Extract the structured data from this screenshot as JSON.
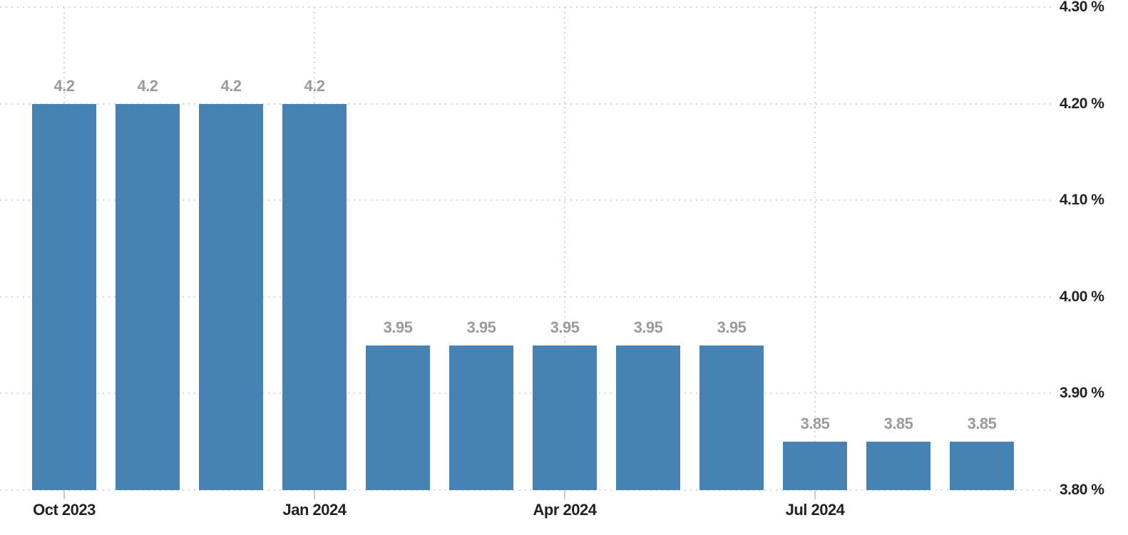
{
  "chart": {
    "bar_color": "#4682b4",
    "grid_color": "#d4d4d4",
    "value_label_color": "#9b9b9b",
    "axis_label_color": "#222222",
    "background_color": "#ffffff"
  },
  "chart_data": {
    "type": "bar",
    "values": [
      4.2,
      4.2,
      4.2,
      4.2,
      3.95,
      3.95,
      3.95,
      3.95,
      3.95,
      3.85,
      3.85,
      3.85
    ],
    "bar_value_labels": [
      "4.2",
      "4.2",
      "4.2",
      "4.2",
      "3.95",
      "3.95",
      "3.95",
      "3.95",
      "3.95",
      "3.85",
      "3.85",
      "3.85"
    ],
    "x_ticks": [
      {
        "bar_index": 0,
        "label": "Oct 2023"
      },
      {
        "bar_index": 3,
        "label": "Jan 2024"
      },
      {
        "bar_index": 6,
        "label": "Apr 2024"
      },
      {
        "bar_index": 9,
        "label": "Jul 2024"
      }
    ],
    "y_ticks": [
      {
        "value": 4.3,
        "label": "4.30 %"
      },
      {
        "value": 4.2,
        "label": "4.20 %"
      },
      {
        "value": 4.1,
        "label": "4.10 %"
      },
      {
        "value": 4.0,
        "label": "4.00 %"
      },
      {
        "value": 3.9,
        "label": "3.90 %"
      },
      {
        "value": 3.8,
        "label": "3.80 %"
      }
    ],
    "ylim": [
      3.8,
      4.3
    ],
    "grid": true,
    "legend_position": "none",
    "y_axis_side": "right"
  }
}
